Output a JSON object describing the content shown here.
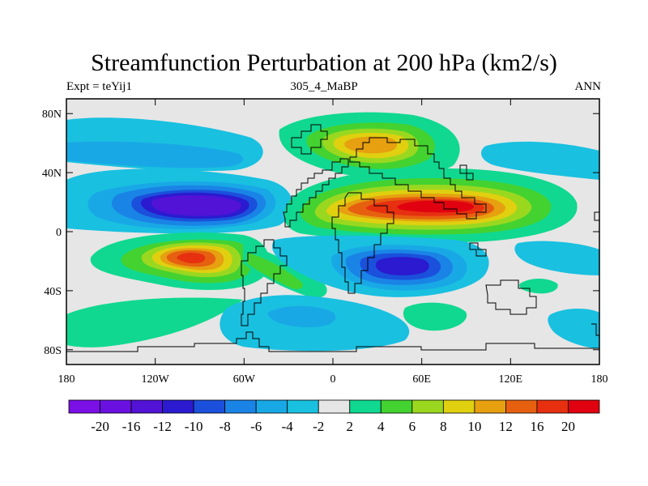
{
  "title": "Streamfunction Perturbation at 200 hPa (km2/s)",
  "subtitle": {
    "left": "Expt = teYij1",
    "center": "305_4_MaBP",
    "right": "ANN"
  },
  "axes": {
    "lon_ticks": [
      {
        "lon": -180,
        "label": "180"
      },
      {
        "lon": -120,
        "label": "120W"
      },
      {
        "lon": -60,
        "label": "60W"
      },
      {
        "lon": 0,
        "label": "0"
      },
      {
        "lon": 60,
        "label": "60E"
      },
      {
        "lon": 120,
        "label": "120E"
      },
      {
        "lon": 180,
        "label": "180"
      }
    ],
    "lat_ticks": [
      {
        "lat": 80,
        "label": "80N"
      },
      {
        "lat": 40,
        "label": "40N"
      },
      {
        "lat": 0,
        "label": "0"
      },
      {
        "lat": -40,
        "label": "40S"
      },
      {
        "lat": -80,
        "label": "80S"
      }
    ],
    "lon_range": [
      -180,
      180
    ],
    "lat_range": [
      -90,
      90
    ]
  },
  "colorbar": {
    "colors": [
      "#7a0fe6",
      "#6a10e0",
      "#5213d6",
      "#2b1ad0",
      "#1a50dc",
      "#1a84e6",
      "#19a8e6",
      "#19c0e0",
      "#e6e6e6",
      "#10d890",
      "#44d230",
      "#9ad820",
      "#e0d010",
      "#e6a010",
      "#e66010",
      "#e63010",
      "#e00010"
    ],
    "labels": [
      "-20",
      "-16",
      "-12",
      "-10",
      "-8",
      "-6",
      "-4",
      "-2",
      "2",
      "4",
      "6",
      "8",
      "10",
      "12",
      "16",
      "20"
    ]
  },
  "chart_data": {
    "type": "heatmap",
    "field": "streamfunction perturbation, 200 hPa, annual mean",
    "units": "km2/s",
    "contour_levels": [
      -20,
      -16,
      -12,
      -10,
      -8,
      -6,
      -4,
      -2,
      2,
      4,
      6,
      8,
      10,
      12,
      16,
      20
    ],
    "lon_range": [
      -180,
      180
    ],
    "lat_range": [
      -90,
      90
    ],
    "features": [
      {
        "name": "north-pacific-minimum",
        "lon": -95,
        "lat": 18,
        "peak_value": -16
      },
      {
        "name": "south-pacific-maximum",
        "lon": -80,
        "lat": -16,
        "peak_value": 16
      },
      {
        "name": "afro-asian-maximum",
        "lon": 65,
        "lat": 20,
        "peak_value": 20
      },
      {
        "name": "eurasian-maximum",
        "lon": 32,
        "lat": 55,
        "peak_value": 10
      },
      {
        "name": "indian-ocean-minimum",
        "lon": 50,
        "lat": -25,
        "peak_value": -12
      }
    ]
  }
}
